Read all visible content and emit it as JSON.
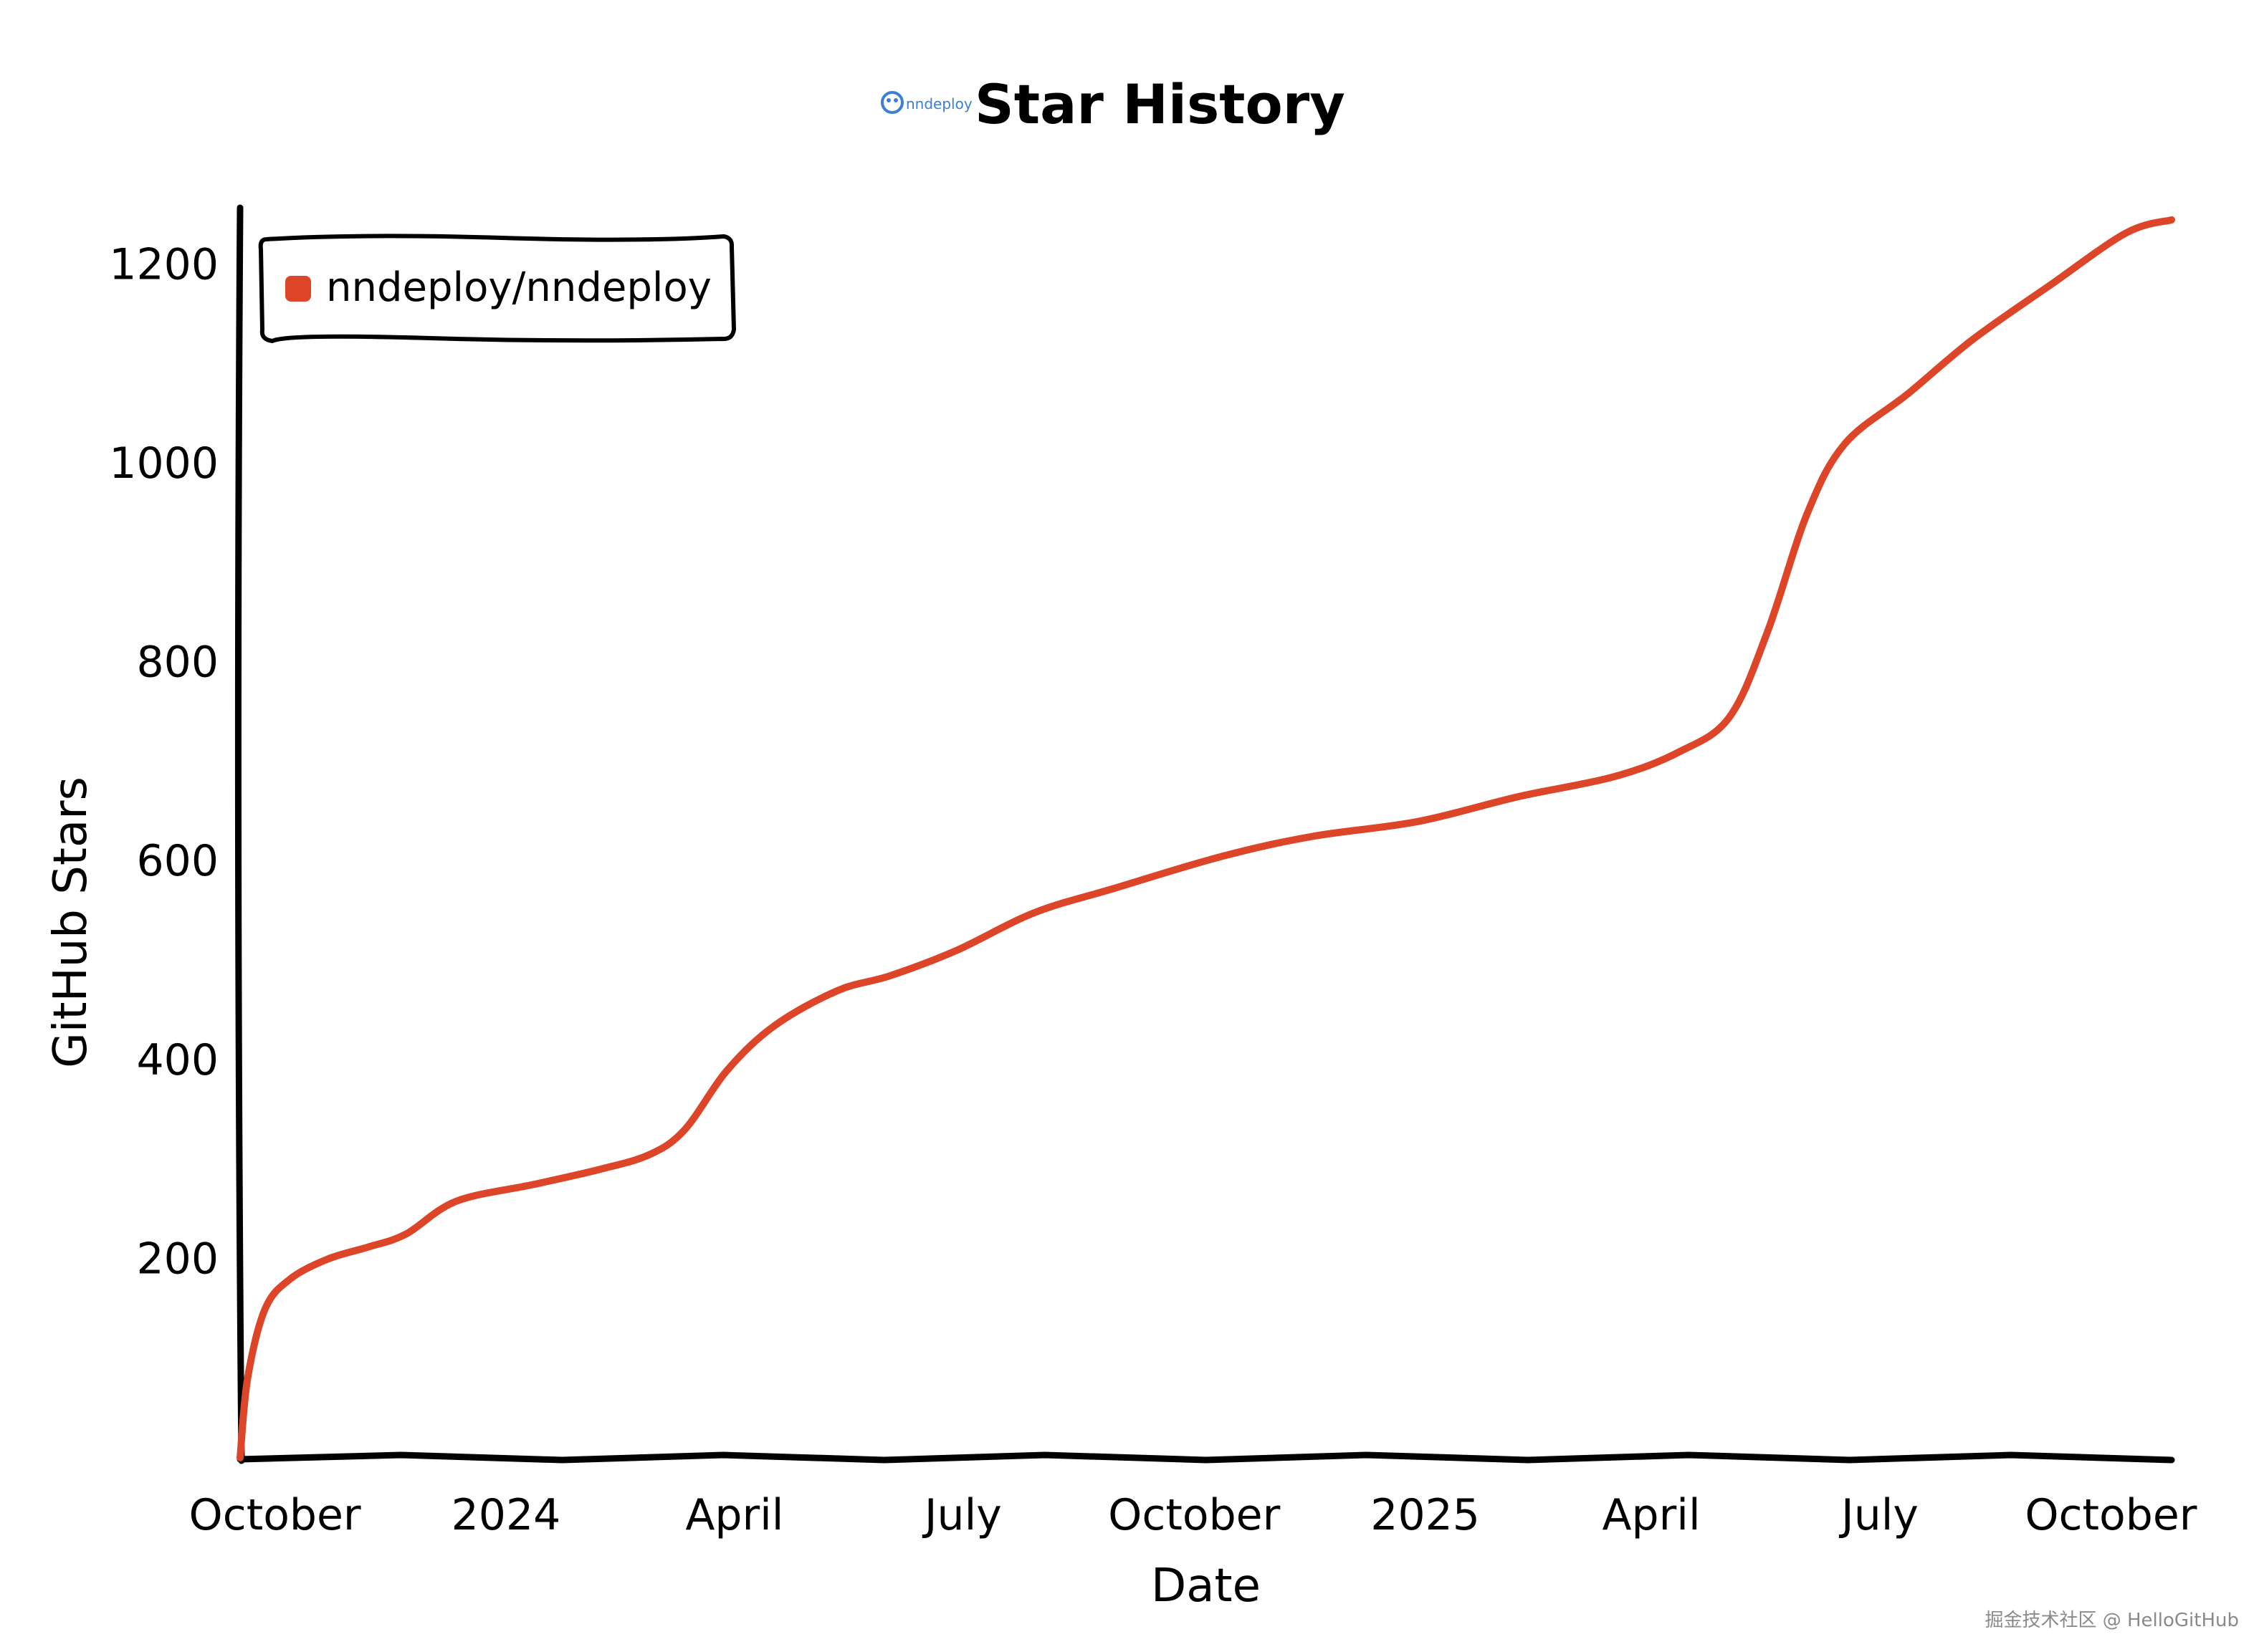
{
  "chart_data": {
    "type": "line",
    "title": "Star History",
    "logo_text": "nndeploy",
    "xlabel": "Date",
    "ylabel": "GitHub Stars",
    "x_ticks": [
      {
        "label": "October",
        "date": "2023-10-01"
      },
      {
        "label": "2024",
        "date": "2024-01-01"
      },
      {
        "label": "April",
        "date": "2024-04-01"
      },
      {
        "label": "July",
        "date": "2024-07-01"
      },
      {
        "label": "October",
        "date": "2024-10-01"
      },
      {
        "label": "2025",
        "date": "2025-01-01"
      },
      {
        "label": "April",
        "date": "2025-04-01"
      },
      {
        "label": "July",
        "date": "2025-07-01"
      },
      {
        "label": "October",
        "date": "2025-10-01"
      }
    ],
    "y_ticks": [
      200,
      400,
      600,
      800,
      1000,
      1200
    ],
    "xlim": [
      "2023-09-20",
      "2025-10-28"
    ],
    "ylim": [
      0,
      1250
    ],
    "legend_position": "top-left",
    "series": [
      {
        "name": "nndeploy/nndeploy",
        "color": "#dd4528",
        "points": [
          {
            "date": "2023-09-20",
            "stars": 0
          },
          {
            "date": "2023-09-23",
            "stars": 80
          },
          {
            "date": "2023-09-30",
            "stars": 150
          },
          {
            "date": "2023-10-10",
            "stars": 180
          },
          {
            "date": "2023-10-25",
            "stars": 200
          },
          {
            "date": "2023-11-10",
            "stars": 212
          },
          {
            "date": "2023-11-25",
            "stars": 225
          },
          {
            "date": "2023-12-15",
            "stars": 258
          },
          {
            "date": "2024-01-15",
            "stars": 275
          },
          {
            "date": "2024-02-10",
            "stars": 290
          },
          {
            "date": "2024-03-01",
            "stars": 305
          },
          {
            "date": "2024-03-15",
            "stars": 330
          },
          {
            "date": "2024-04-01",
            "stars": 390
          },
          {
            "date": "2024-04-20",
            "stars": 435
          },
          {
            "date": "2024-05-15",
            "stars": 470
          },
          {
            "date": "2024-06-05",
            "stars": 485
          },
          {
            "date": "2024-07-01",
            "stars": 510
          },
          {
            "date": "2024-08-01",
            "stars": 548
          },
          {
            "date": "2024-09-01",
            "stars": 572
          },
          {
            "date": "2024-10-15",
            "stars": 605
          },
          {
            "date": "2024-11-20",
            "stars": 625
          },
          {
            "date": "2025-01-01",
            "stars": 640
          },
          {
            "date": "2025-02-10",
            "stars": 665
          },
          {
            "date": "2025-03-20",
            "stars": 685
          },
          {
            "date": "2025-04-15",
            "stars": 710
          },
          {
            "date": "2025-05-05",
            "stars": 745
          },
          {
            "date": "2025-05-20",
            "stars": 830
          },
          {
            "date": "2025-06-05",
            "stars": 950
          },
          {
            "date": "2025-06-20",
            "stars": 1020
          },
          {
            "date": "2025-07-15",
            "stars": 1070
          },
          {
            "date": "2025-08-10",
            "stars": 1125
          },
          {
            "date": "2025-09-10",
            "stars": 1180
          },
          {
            "date": "2025-10-10",
            "stars": 1232
          },
          {
            "date": "2025-10-28",
            "stars": 1245
          }
        ]
      }
    ]
  },
  "watermark": "掘金技术社区 @ HelloGitHub"
}
